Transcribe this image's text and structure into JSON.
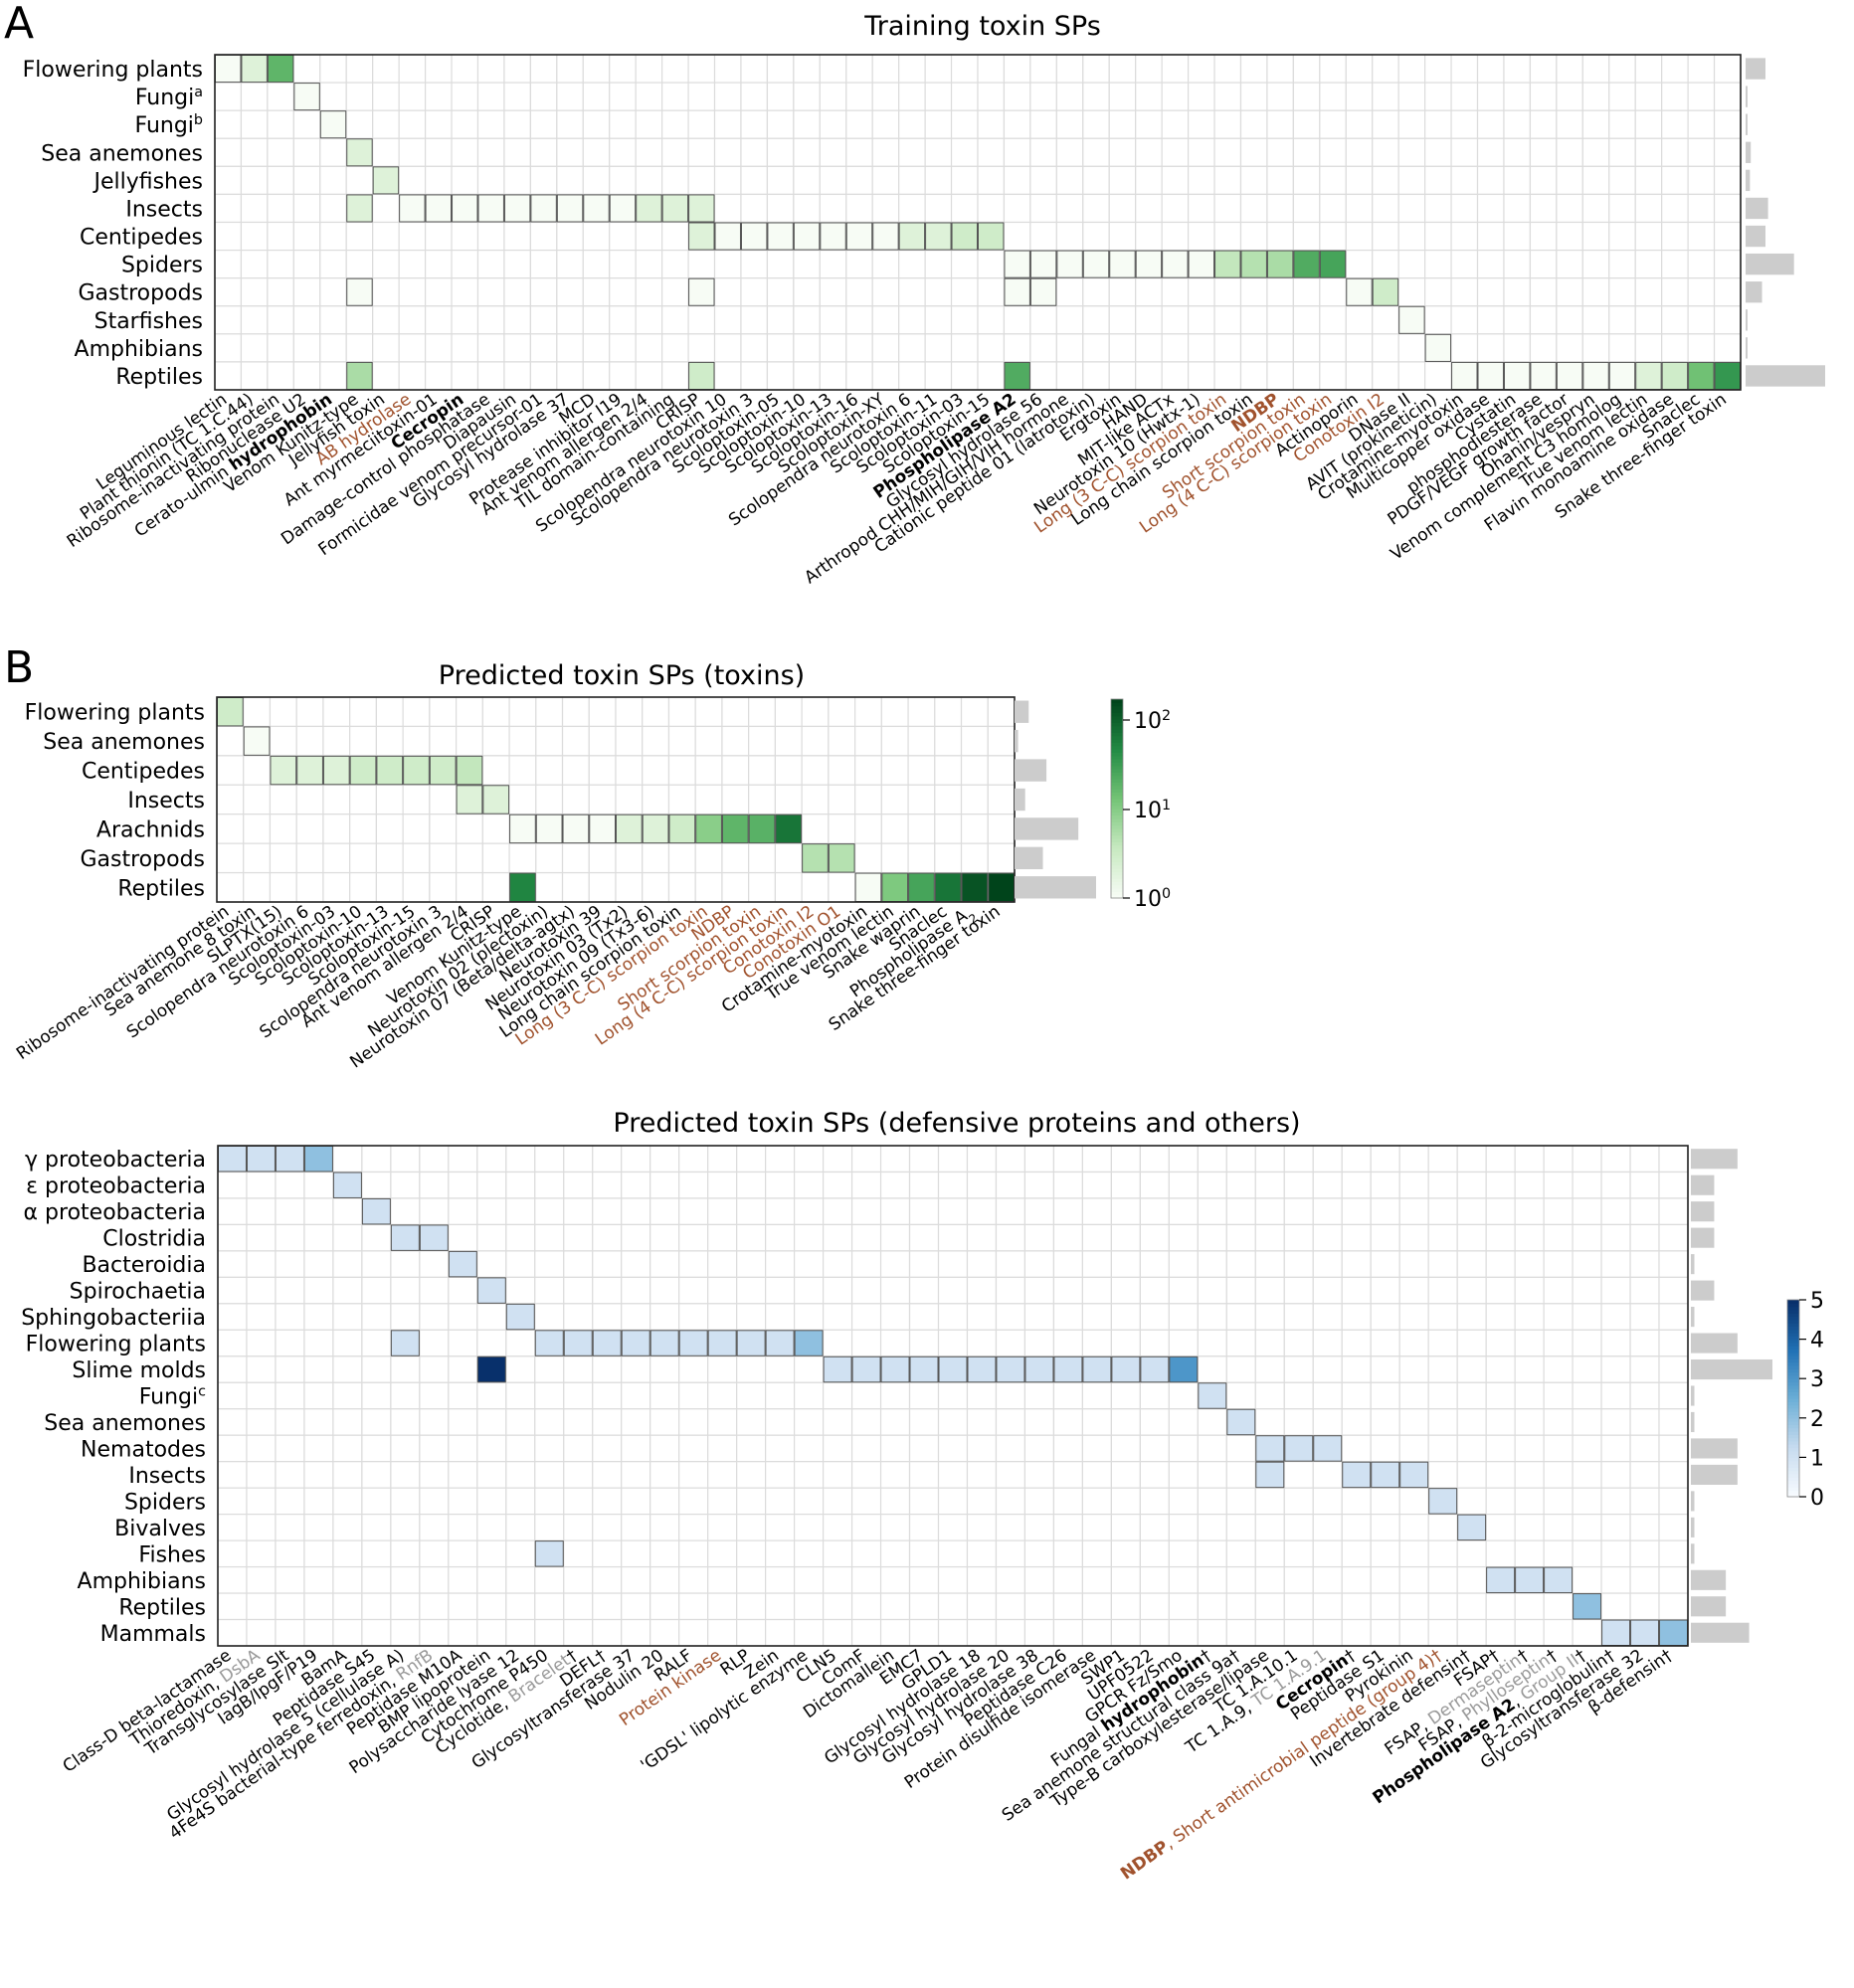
{
  "chart_data": [
    {
      "type": "heatmap",
      "panel_label": "A",
      "title": "Training toxin SPs",
      "rows": [
        "Flowering plants",
        "Fungi|a",
        "Fungi|b",
        "Sea anemones",
        "Jellyfishes",
        "Insects",
        "Centipedes",
        "Spiders",
        "Gastropods",
        "Starfishes",
        "Amphibians",
        "Reptiles"
      ],
      "columns": [
        "Leguminous lectin",
        "Plant thionin (TC 1.C.44)",
        "Ribosome-inactivating protein",
        "Ribonuclease U2",
        "Cerato-ulmin **hydrophobin**",
        "Venom Kunitz-type",
        "Jellyfish toxin",
        "AB hydrolase",
        "Ant myrmeciitoxin-01",
        "**Cecropin**",
        "Damage-control phosphatase",
        "Diapausin",
        "Formicidae venom precursor-01",
        "Glycosyl hydrolase 37",
        "MCD",
        "Protease inhibitor I19",
        "Ant venom allergen 2/4",
        "TIL domain-containing",
        "CRISP",
        "Scolopendra neurotoxin 10",
        "Scolopendra neurotoxin 3",
        "Scoloptoxin-05",
        "Scoloptoxin-10",
        "Scoloptoxin-13",
        "Scoloptoxin-16",
        "Scoloptoxin-XY",
        "Scolopendra neurotoxin 6",
        "Scoloptoxin-11",
        "Scoloptoxin-03",
        "Scoloptoxin-15",
        "**Phospholipase A~2~**",
        "Glycosyl hydrolase 56",
        "Arthropod CHH/MIH/GIH/VIH hormone",
        "Cationic peptide 01 (latrotoxin)",
        "Ergtoxin",
        "HAND",
        "MIT-like ACTx",
        "Neurotoxin 10 (Hwtx-1)",
        "Long (3 C-C) scorpion toxin",
        "Long chain scorpion toxin",
        "**NDBP**",
        "Short scorpion toxin",
        "Long (4 C-C) scorpion toxin",
        "Actinoporin",
        "Conotoxin I2",
        "DNase II",
        "AVIT (prokineticin)",
        "Crotamine-myotoxin",
        "Multicopper oxidase",
        "Cystatin",
        "phosphodiesterase",
        "PDGF/VEGF growth factor",
        "Ohanin/vespryn",
        "Venom complement C3 homolog",
        "True venom lectin",
        "Flavin monoamine oxidase",
        "Snaclec",
        "Snake three-finger toxin"
      ],
      "column_label_colors": {
        "AB hydrolase": "#a0522d",
        "Long (3 C-C) scorpion toxin": "#a0522d",
        "**NDBP**": "#a0522d",
        "Short scorpion toxin": "#a0522d",
        "Long (4 C-C) scorpion toxin": "#a0522d",
        "Conotoxin I2": "#a0522d"
      },
      "counts": [
        [
          0,
          0,
          1
        ],
        [
          0,
          1,
          2
        ],
        [
          0,
          2,
          20
        ],
        [
          1,
          3,
          1
        ],
        [
          2,
          4,
          1
        ],
        [
          3,
          5,
          2
        ],
        [
          4,
          6,
          2
        ],
        [
          5,
          5,
          2
        ],
        [
          5,
          7,
          1
        ],
        [
          5,
          8,
          1
        ],
        [
          5,
          9,
          1
        ],
        [
          5,
          10,
          1
        ],
        [
          5,
          11,
          1
        ],
        [
          5,
          12,
          1
        ],
        [
          5,
          13,
          1
        ],
        [
          5,
          14,
          1
        ],
        [
          5,
          15,
          1
        ],
        [
          5,
          16,
          2
        ],
        [
          5,
          17,
          2
        ],
        [
          5,
          18,
          2
        ],
        [
          6,
          18,
          2
        ],
        [
          6,
          19,
          1
        ],
        [
          6,
          20,
          1
        ],
        [
          6,
          21,
          1
        ],
        [
          6,
          22,
          1
        ],
        [
          6,
          23,
          1
        ],
        [
          6,
          24,
          1
        ],
        [
          6,
          25,
          1
        ],
        [
          6,
          26,
          2
        ],
        [
          6,
          27,
          2
        ],
        [
          6,
          28,
          3
        ],
        [
          6,
          29,
          3
        ],
        [
          7,
          30,
          1
        ],
        [
          7,
          31,
          1
        ],
        [
          7,
          32,
          1
        ],
        [
          7,
          33,
          1
        ],
        [
          7,
          34,
          1
        ],
        [
          7,
          35,
          1
        ],
        [
          7,
          36,
          1
        ],
        [
          7,
          37,
          1
        ],
        [
          7,
          38,
          4
        ],
        [
          7,
          39,
          5
        ],
        [
          7,
          40,
          6
        ],
        [
          7,
          41,
          25
        ],
        [
          7,
          42,
          30
        ],
        [
          8,
          5,
          1
        ],
        [
          8,
          18,
          1
        ],
        [
          8,
          30,
          1
        ],
        [
          8,
          31,
          1
        ],
        [
          8,
          43,
          1
        ],
        [
          8,
          44,
          3
        ],
        [
          9,
          45,
          1
        ],
        [
          10,
          46,
          1
        ],
        [
          11,
          5,
          6
        ],
        [
          11,
          18,
          3
        ],
        [
          11,
          30,
          25
        ],
        [
          11,
          47,
          1
        ],
        [
          11,
          48,
          1
        ],
        [
          11,
          49,
          1
        ],
        [
          11,
          50,
          1
        ],
        [
          11,
          51,
          1
        ],
        [
          11,
          52,
          1
        ],
        [
          11,
          53,
          1
        ],
        [
          11,
          54,
          2
        ],
        [
          11,
          55,
          3
        ],
        [
          11,
          56,
          15
        ],
        [
          11,
          57,
          40
        ]
      ],
      "row_totals": [
        23,
        1,
        1,
        6,
        5,
        26,
        23,
        56,
        19,
        1,
        1,
        92
      ],
      "colorscale": "log green",
      "colorbar_range": [
        1,
        200
      ]
    },
    {
      "type": "heatmap",
      "panel_label": "B",
      "title": "Predicted toxin SPs (toxins)",
      "rows": [
        "Flowering plants",
        "Sea anemones",
        "Centipedes",
        "Insects",
        "Arachnids",
        "Gastropods",
        "Reptiles"
      ],
      "columns": [
        "Ribosome-inactivating protein",
        "Sea anemone 8 toxin",
        "SLPTX(15)",
        "Scolopendra neurotoxin 6",
        "Scoloptoxin-03",
        "Scoloptoxin-10",
        "Scoloptoxin-13",
        "Scoloptoxin-15",
        "Scolopendra neurotoxin 3",
        "Ant venom allergen 2/4",
        "CRISP",
        "Venom Kunitz-type",
        "Neurotoxin 02 (plectoxin)",
        "Neurotoxin 07 (Beta/delta-agtx)",
        "Neurotoxin 39",
        "Neurotoxin 03 (Tx2)",
        "Neurotoxin 09 (Tx3-6)",
        "Long chain scorpion toxin",
        "Long (3 C-C) scorpion toxin",
        "NDBP",
        "Short scorpion toxin",
        "Long (4 C-C) scorpion toxin",
        "Conotoxin I2",
        "Conotoxin O1",
        "Crotamine-myotoxin",
        "True venom lectin",
        "Snake waprin",
        "Snaclec",
        "Phospholipase A~2~",
        "Snake three-finger toxin"
      ],
      "column_label_colors": {
        "Long (3 C-C) scorpion toxin": "#a0522d",
        "NDBP": "#a0522d",
        "Short scorpion toxin": "#a0522d",
        "Long (4 C-C) scorpion toxin": "#a0522d",
        "Conotoxin I2": "#a0522d",
        "Conotoxin O1": "#a0522d"
      },
      "counts": [
        [
          0,
          0,
          3
        ],
        [
          1,
          1,
          1
        ],
        [
          2,
          2,
          2
        ],
        [
          2,
          3,
          2
        ],
        [
          2,
          4,
          2
        ],
        [
          2,
          5,
          3
        ],
        [
          2,
          6,
          3
        ],
        [
          2,
          7,
          3
        ],
        [
          2,
          8,
          3
        ],
        [
          2,
          9,
          4
        ],
        [
          3,
          9,
          2
        ],
        [
          3,
          10,
          2
        ],
        [
          4,
          11,
          1
        ],
        [
          4,
          12,
          1
        ],
        [
          4,
          13,
          1
        ],
        [
          4,
          14,
          1
        ],
        [
          4,
          15,
          2
        ],
        [
          4,
          16,
          2
        ],
        [
          4,
          17,
          3
        ],
        [
          4,
          18,
          10
        ],
        [
          4,
          19,
          20
        ],
        [
          4,
          20,
          22
        ],
        [
          4,
          21,
          80
        ],
        [
          5,
          22,
          5
        ],
        [
          5,
          23,
          5
        ],
        [
          6,
          11,
          60
        ],
        [
          6,
          24,
          1
        ],
        [
          6,
          25,
          12
        ],
        [
          6,
          26,
          30
        ],
        [
          6,
          27,
          80
        ],
        [
          6,
          28,
          150
        ],
        [
          6,
          29,
          200
        ]
      ],
      "row_totals": [
        4,
        1,
        9,
        3,
        18,
        8,
        23
      ],
      "colorscale": "log green",
      "colorbar_ticks": [
        "10|0",
        "10|1",
        "10|2"
      ]
    },
    {
      "type": "heatmap",
      "title": "Predicted toxin SPs (defensive proteins and others)",
      "rows": [
        "γ proteobacteria",
        "ε proteobacteria",
        "α proteobacteria",
        "Clostridia",
        "Bacteroidia",
        "Spirochaetia",
        "Sphingobacteriia",
        "Flowering plants",
        "Slime molds",
        "Fungi|c",
        "Sea anemones",
        "Nematodes",
        "Insects",
        "Spiders",
        "Bivalves",
        "Fishes",
        "Amphibians",
        "Reptiles",
        "Mammals"
      ],
      "columns": [
        "Class-D beta-lactamase",
        "Thioredoxin, DsbA",
        "Transglycosylase Slt",
        "IagB/IpgF/P19",
        "BamA",
        "Peptidase S45",
        "Glycosyl hydrolase 5 (cellulase A)",
        "4Fe4S bacterial-type ferredoxin, RnfB",
        "Peptidase M10A",
        "BMP lipoprotein",
        "Polysaccharide lyase 12",
        "Cytochrome P450",
        "Cyclotide, Bracelet†",
        "DEFL†",
        "Glycosyltransferase 37",
        "Nodulin 20",
        "RALF",
        "Protein kinase",
        "RLP",
        "Zein",
        "'GDSL' lipolytic enzyme",
        "CLN5",
        "ComF",
        "Dictomallein",
        "EMC7",
        "GPLD1",
        "Glycosyl hydrolase 18",
        "Glycosyl hydrolase 20",
        "Glycosyl hydrolase 38",
        "Peptidase C26",
        "Protein disulfide isomerase",
        "SWP1",
        "UPF0522",
        "GPCR Fz/Smo",
        "Fungal **hydrophobin**†",
        "Sea anemone structural class 9a†",
        "Type-B carboxylesterase/lipase",
        "TC 1.A.10.1",
        "TC 1.A.9, TC 1.A.9.1",
        "**Cecropin**†",
        "Peptidase S1",
        "Pyrokinin",
        "**NDBP**, Short antimicrobial peptide (group 4)†",
        "Invertebrate defensin†",
        "FSAP†",
        "FSAP, Dermaseptin†",
        "FSAP, Phylloseptin†",
        "**Phospholipase A~2~**, Group II†",
        "β-2-microglobulin†",
        "Glycosyltransferase 32",
        "β-defensin†"
      ],
      "column_label_colors": {
        "Protein kinase": "#a0522d",
        "**NDBP**, Short antimicrobial peptide (group 4)†": "#a0522d"
      },
      "counts": [
        [
          0,
          0,
          1
        ],
        [
          0,
          1,
          1
        ],
        [
          0,
          2,
          1
        ],
        [
          0,
          3,
          2
        ],
        [
          1,
          4,
          1
        ],
        [
          2,
          5,
          1
        ],
        [
          3,
          6,
          1
        ],
        [
          3,
          7,
          1
        ],
        [
          4,
          8,
          1
        ],
        [
          5,
          9,
          1
        ],
        [
          6,
          10,
          1
        ],
        [
          7,
          6,
          1
        ],
        [
          7,
          11,
          1
        ],
        [
          7,
          12,
          1
        ],
        [
          7,
          13,
          1
        ],
        [
          7,
          14,
          1
        ],
        [
          7,
          15,
          1
        ],
        [
          7,
          16,
          1
        ],
        [
          7,
          17,
          1
        ],
        [
          7,
          18,
          1
        ],
        [
          7,
          19,
          1
        ],
        [
          7,
          20,
          2
        ],
        [
          8,
          9,
          5
        ],
        [
          8,
          21,
          1
        ],
        [
          8,
          22,
          1
        ],
        [
          8,
          23,
          1
        ],
        [
          8,
          24,
          1
        ],
        [
          8,
          25,
          1
        ],
        [
          8,
          26,
          1
        ],
        [
          8,
          27,
          1
        ],
        [
          8,
          28,
          1
        ],
        [
          8,
          29,
          1
        ],
        [
          8,
          30,
          1
        ],
        [
          8,
          31,
          1
        ],
        [
          8,
          32,
          1
        ],
        [
          8,
          33,
          3
        ],
        [
          9,
          34,
          1
        ],
        [
          10,
          35,
          1
        ],
        [
          11,
          36,
          1
        ],
        [
          11,
          37,
          1
        ],
        [
          11,
          38,
          1
        ],
        [
          12,
          36,
          1
        ],
        [
          12,
          39,
          1
        ],
        [
          12,
          40,
          1
        ],
        [
          12,
          41,
          1
        ],
        [
          13,
          42,
          1
        ],
        [
          14,
          43,
          1
        ],
        [
          15,
          11,
          1
        ],
        [
          16,
          44,
          1
        ],
        [
          16,
          45,
          1
        ],
        [
          16,
          46,
          1
        ],
        [
          17,
          47,
          2
        ],
        [
          18,
          48,
          1
        ],
        [
          18,
          49,
          1
        ],
        [
          18,
          50,
          2
        ]
      ],
      "row_totals": [
        4,
        2,
        2,
        2,
        0.3,
        2,
        0.3,
        4,
        7,
        0.3,
        0.3,
        4,
        4,
        0.3,
        0.3,
        0.3,
        3,
        3,
        5
      ],
      "colorscale": "linear blue",
      "colorbar_range": [
        0,
        5
      ],
      "colorbar_ticks": [
        "5",
        "4",
        "3",
        "2",
        "1",
        "0"
      ]
    }
  ],
  "colors": {
    "accent_brown": "#a0522d",
    "gray_label": "#999999",
    "bar_gray": "#cccccc",
    "grid": "#d8d8d8"
  }
}
